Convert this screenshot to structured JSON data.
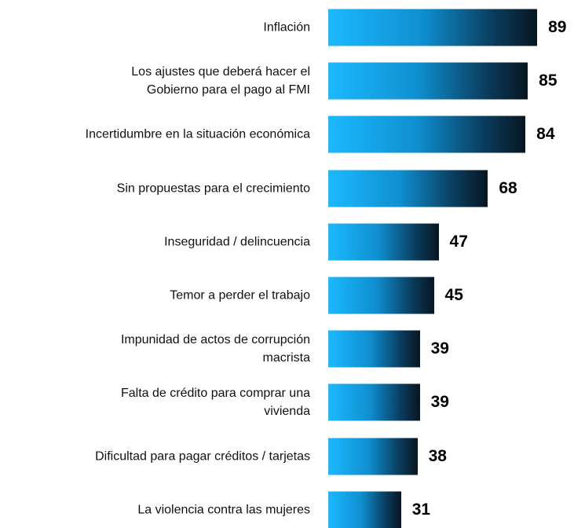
{
  "chart_data": {
    "type": "bar",
    "orientation": "horizontal",
    "categories": [
      "Inflación",
      "Los ajustes que deberá hacer el\nGobierno para el pago al FMI",
      "Incertidumbre en la situación económica",
      "Sin propuestas para el crecimiento",
      "Inseguridad / delincuencia",
      "Temor a perder el trabajo",
      "Impunidad de actos de corrupción\nmacrista",
      "Falta de crédito para comprar una\nvivienda",
      "Dificultad para pagar créditos / tarjetas",
      "La violencia contra las mujeres"
    ],
    "values": [
      89,
      85,
      84,
      68,
      47,
      45,
      39,
      39,
      38,
      31
    ]
  }
}
